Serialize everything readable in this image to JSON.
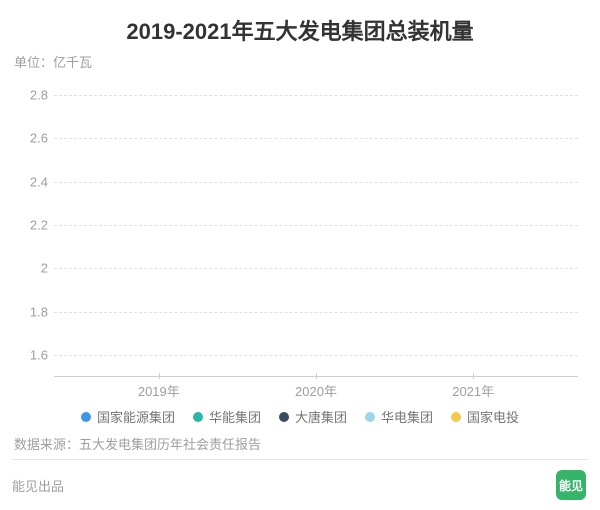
{
  "chart": {
    "type": "line",
    "title": "2019-2021年五大发电集团总装机量",
    "title_fontsize": 22,
    "title_color": "#333333",
    "subtitle": "单位：亿千瓦",
    "subtitle_fontsize": 13,
    "subtitle_color": "#9e9e9e",
    "background_color": "#ffffff",
    "grid_color": "#e0e0e0",
    "axis_line_color": "#cfcfcf",
    "axis_label_color": "#9e9e9e",
    "axis_label_fontsize": 13,
    "y": {
      "min": 1.5,
      "max": 2.9,
      "ticks": [
        1.6,
        1.8,
        2.0,
        2.2,
        2.4,
        2.6,
        2.8
      ],
      "tick_labels": [
        "1.6",
        "1.8",
        "2",
        "2.2",
        "2.4",
        "2.6",
        "2.8"
      ]
    },
    "x": {
      "categories": [
        "2019年",
        "2020年",
        "2021年"
      ],
      "positions_pct": [
        20,
        50,
        80
      ]
    },
    "series": [
      {
        "name": "国家能源集团",
        "color": "#3d97e3",
        "values": [
          null,
          null,
          null
        ]
      },
      {
        "name": "华能集团",
        "color": "#2bb3a3",
        "values": [
          null,
          null,
          null
        ]
      },
      {
        "name": "大唐集团",
        "color": "#3a4a63",
        "values": [
          null,
          null,
          null
        ]
      },
      {
        "name": "华电集团",
        "color": "#9dd6e8",
        "values": [
          null,
          null,
          null
        ]
      },
      {
        "name": "国家电投",
        "color": "#f2c94c",
        "values": [
          null,
          null,
          null
        ]
      }
    ],
    "legend": {
      "fontsize": 13,
      "text_color": "#757575",
      "swatch_radius": 5
    }
  },
  "source_line": "数据来源：五大发电集团历年社会责任报告",
  "source_fontsize": 13,
  "divider_color": "#e5e5e5",
  "footer": {
    "publisher": "能见出品",
    "publisher_fontsize": 13,
    "publisher_color": "#9e9e9e",
    "badge_text": "能见",
    "badge_bg": "#35b46a",
    "badge_fg": "#ffffff",
    "badge_fontsize": 12
  }
}
